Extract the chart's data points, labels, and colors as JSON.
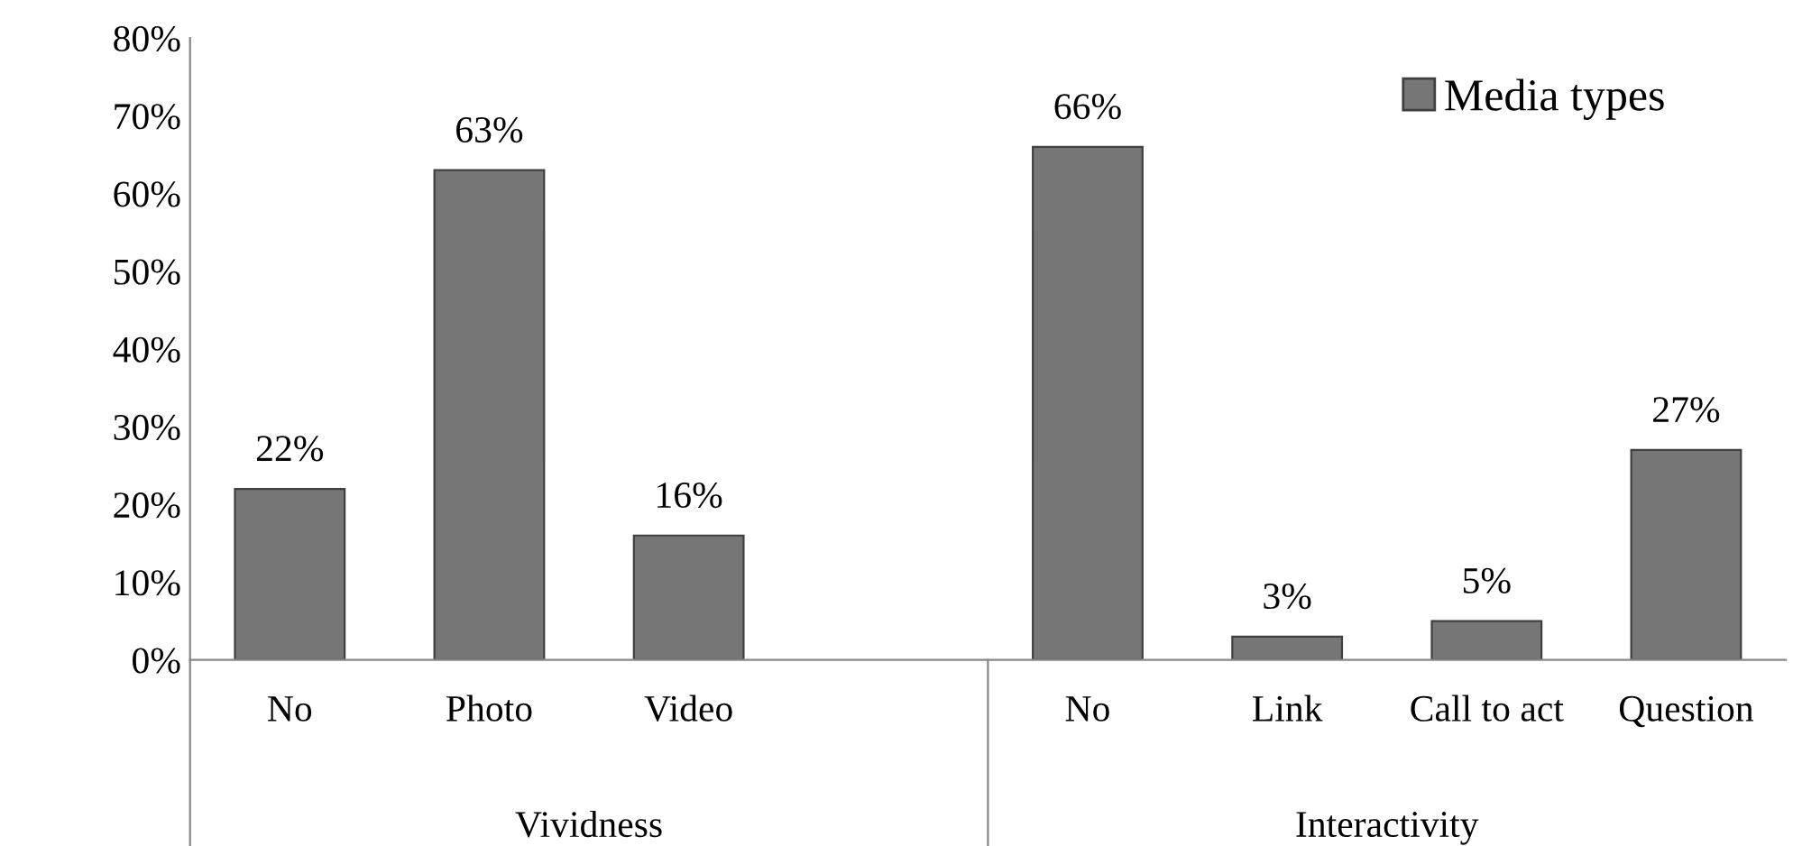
{
  "chart_data": {
    "type": "bar",
    "categories": [
      "No",
      "Photo",
      "Video",
      null,
      "No",
      "Link",
      "Call to act",
      "Question"
    ],
    "series": [
      {
        "name": "Media types",
        "color": "#767676",
        "values": [
          22,
          63,
          16,
          null,
          66,
          3,
          5,
          27
        ],
        "value_labels": [
          "22%",
          "63%",
          "16%",
          null,
          "66%",
          "3%",
          "5%",
          "27%"
        ]
      }
    ],
    "ylim": [
      0,
      80
    ],
    "yticks": [
      {
        "value": 0,
        "label": "0%"
      },
      {
        "value": 10,
        "label": "10%"
      },
      {
        "value": 20,
        "label": "20%"
      },
      {
        "value": 30,
        "label": "30%"
      },
      {
        "value": 40,
        "label": "40%"
      },
      {
        "value": 50,
        "label": "50%"
      },
      {
        "value": 60,
        "label": "60%"
      },
      {
        "value": 70,
        "label": "70%"
      },
      {
        "value": 80,
        "label": "80%"
      }
    ],
    "annotations": [
      "Vividness",
      "Interactivity"
    ],
    "grid": false,
    "legend": "top right"
  }
}
